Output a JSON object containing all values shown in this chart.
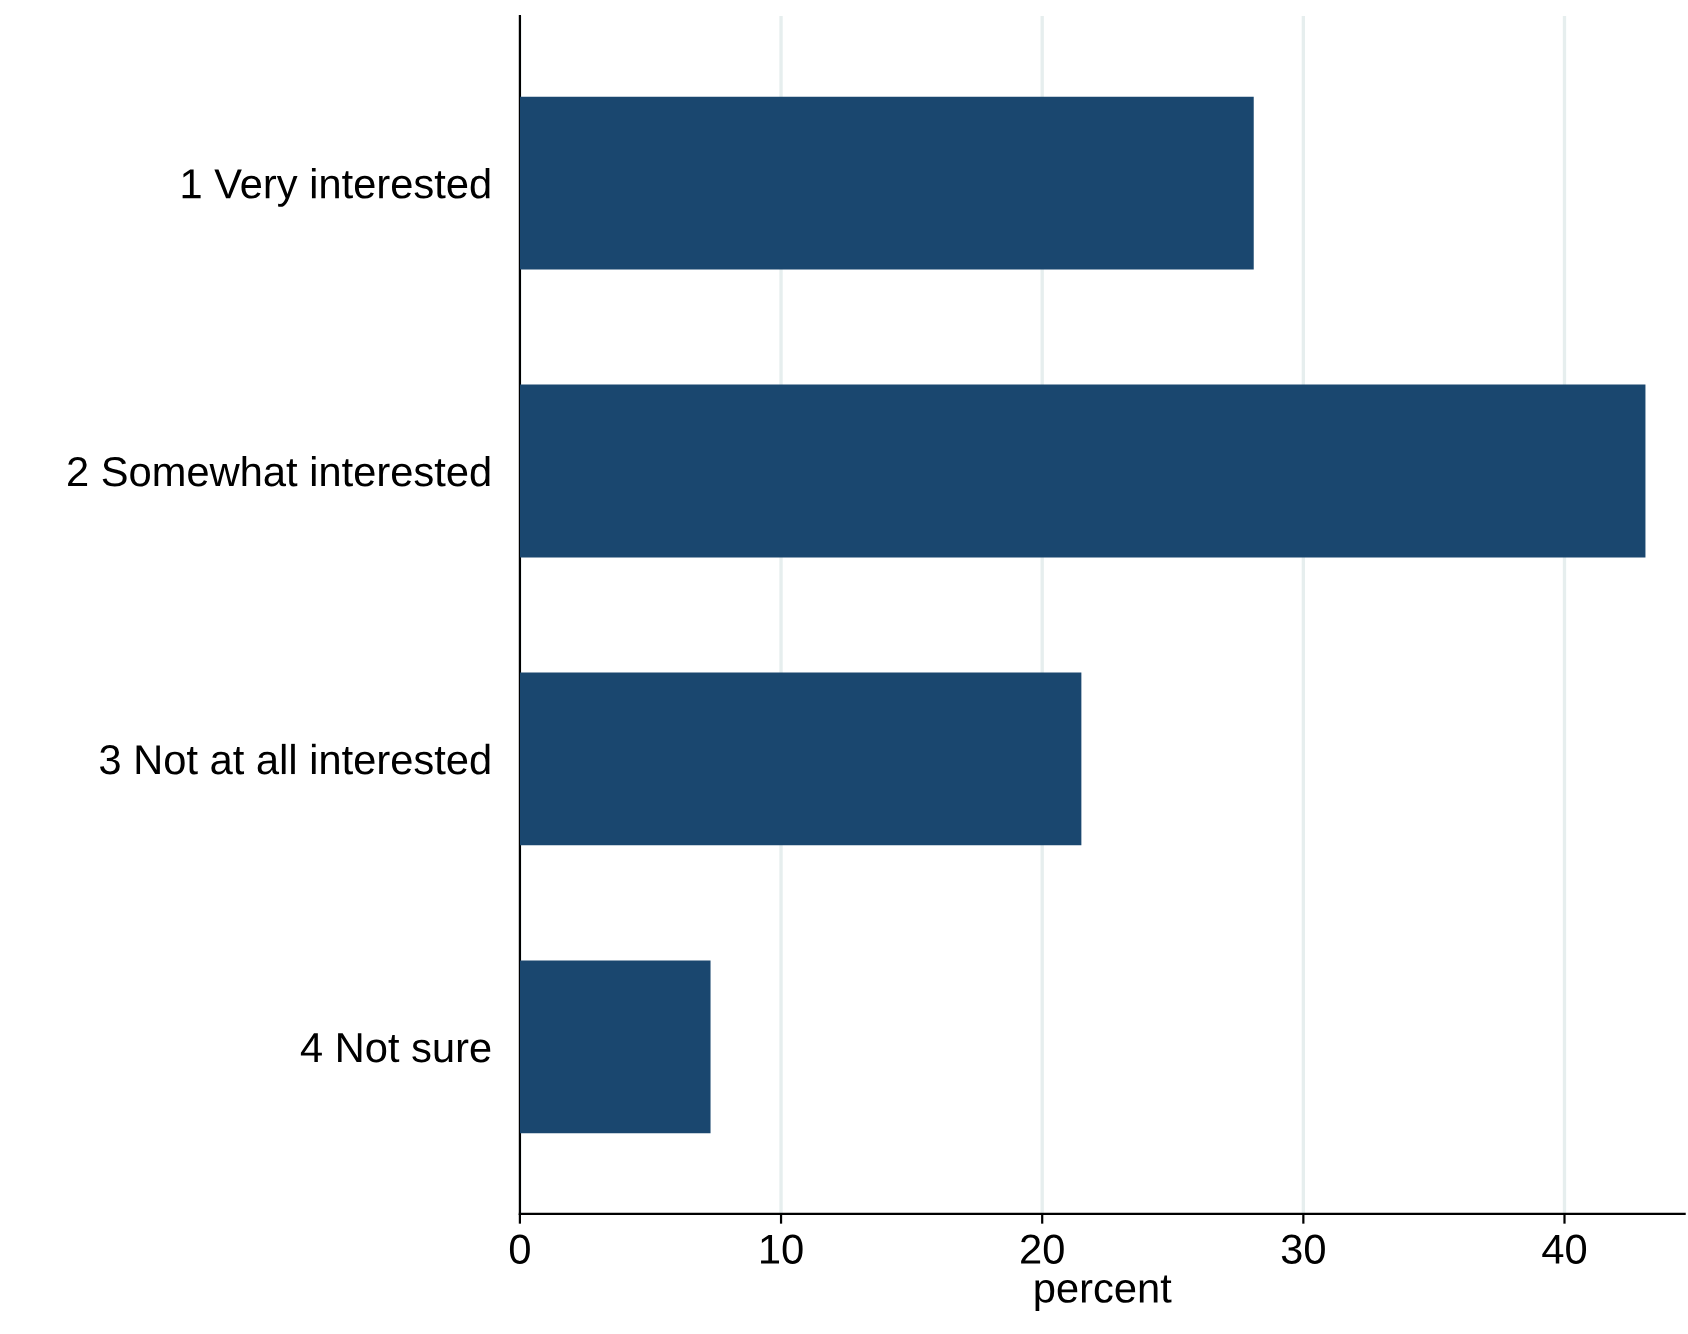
{
  "chart_data": {
    "type": "bar",
    "orientation": "horizontal",
    "xlabel": "percent",
    "categories": [
      "1 Very interested",
      "2 Somewhat interested",
      "3 Not at all interested",
      "4 Not sure"
    ],
    "values": [
      28.1,
      43.1,
      21.5,
      7.3
    ],
    "color": "#1a476f",
    "xlim": [
      0,
      44.6
    ],
    "xticks": [
      0,
      10,
      20,
      30,
      40
    ],
    "grid": "x",
    "legend": false
  }
}
